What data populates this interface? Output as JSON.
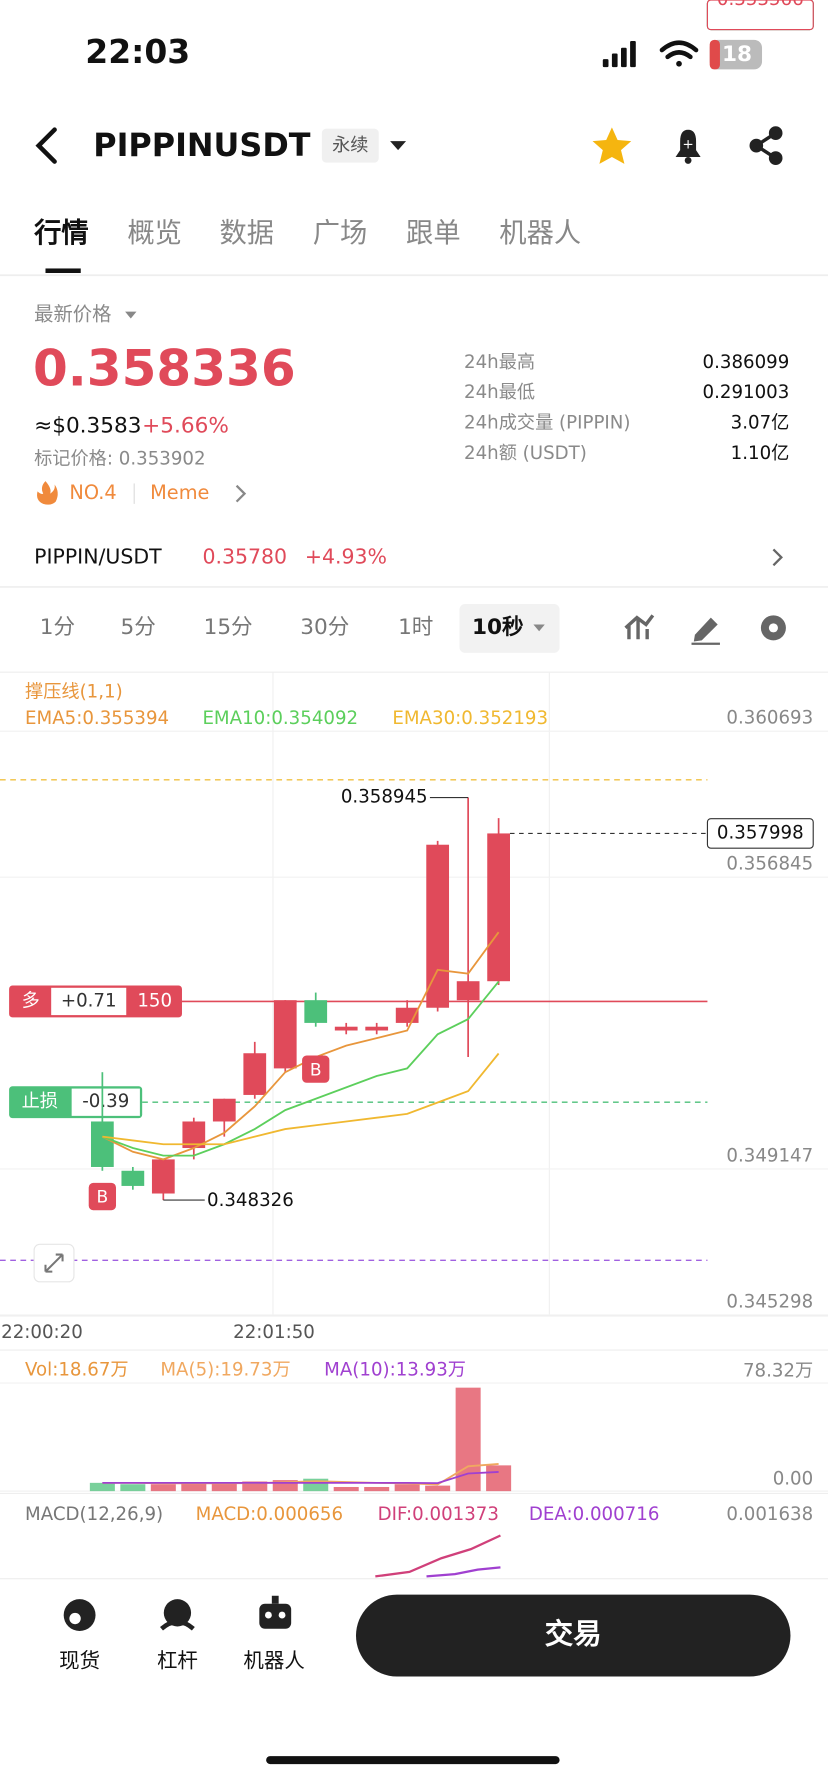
{
  "status_bar": {
    "time": "22:03",
    "battery": "18"
  },
  "header": {
    "symbol": "PIPPINUSDT",
    "contract_type": "永续"
  },
  "tabs": [
    "行情",
    "概览",
    "数据",
    "广场",
    "跟单",
    "机器人"
  ],
  "price_panel": {
    "latest_label": "最新价格",
    "price": "0.358336",
    "usd_price": "≈$0.3583",
    "change": "+5.66%",
    "mark_price": "标记价格: 0.353902",
    "rank": "NO.4",
    "tag": "Meme",
    "stats": [
      {
        "label": "24h最高",
        "value": "0.386099"
      },
      {
        "label": "24h最低",
        "value": "0.291003"
      },
      {
        "label": "24h成交量 (PIPPIN)",
        "value": "3.07亿"
      },
      {
        "label": "24h额 (USDT)",
        "value": "1.10亿"
      }
    ]
  },
  "spot_row": {
    "pair": "PIPPIN/USDT",
    "price": "0.35780",
    "change": "+4.93%"
  },
  "intervals": [
    "1分",
    "5分",
    "15分",
    "30分",
    "1时",
    "10秒"
  ],
  "chart": {
    "indicator_label": "撑压线(1,1)",
    "ylim": [
      0.34527,
      0.36222
    ],
    "yticks": [
      0.360693,
      0.356845,
      0.349147,
      0.345298
    ],
    "time_labels": [
      "22:00:20",
      "22:01:50"
    ],
    "up_color": "#e04a5a",
    "down_color": "#4cc07a",
    "candles": [
      {
        "o": 0.3504,
        "h": 0.3517,
        "l": 0.3491,
        "c": 0.3492
      },
      {
        "o": 0.3491,
        "h": 0.3492,
        "l": 0.3486,
        "c": 0.3487
      },
      {
        "o": 0.3485,
        "h": 0.3494,
        "l": 0.348326,
        "c": 0.3494
      },
      {
        "o": 0.3497,
        "h": 0.3505,
        "l": 0.3494,
        "c": 0.3504
      },
      {
        "o": 0.3504,
        "h": 0.351,
        "l": 0.35,
        "c": 0.351
      },
      {
        "o": 0.3511,
        "h": 0.3525,
        "l": 0.351,
        "c": 0.3522
      },
      {
        "o": 0.3518,
        "h": 0.3536,
        "l": 0.3517,
        "c": 0.3536
      },
      {
        "o": 0.3536,
        "h": 0.3538,
        "l": 0.3529,
        "c": 0.353
      },
      {
        "o": 0.3528,
        "h": 0.353,
        "l": 0.3527,
        "c": 0.3529
      },
      {
        "o": 0.3528,
        "h": 0.353,
        "l": 0.3527,
        "c": 0.3529
      },
      {
        "o": 0.353,
        "h": 0.3536,
        "l": 0.3529,
        "c": 0.3534
      },
      {
        "o": 0.3534,
        "h": 0.3578,
        "l": 0.3533,
        "c": 0.3577
      },
      {
        "o": 0.3536,
        "h": 0.358945,
        "l": 0.3521,
        "c": 0.3541
      },
      {
        "o": 0.3541,
        "h": 0.3584,
        "l": 0.354,
        "c": 0.357998
      }
    ],
    "ema": [
      {
        "name": "EMA5:0.355394",
        "color": "#e8963c",
        "values": [
          0.35,
          0.3496,
          0.3494,
          0.3497,
          0.3501,
          0.3508,
          0.3517,
          0.3521,
          0.3524,
          0.3526,
          0.3528,
          0.3544,
          0.3543,
          0.355394
        ]
      },
      {
        "name": "EMA10:0.354092",
        "color": "#5ccf5c",
        "values": [
          0.35,
          0.3497,
          0.3495,
          0.3495,
          0.3498,
          0.3502,
          0.3507,
          0.351,
          0.3513,
          0.3516,
          0.3518,
          0.3527,
          0.3531,
          0.354092
        ]
      },
      {
        "name": "EMA30:0.352193",
        "color": "#f0b830",
        "values": [
          0.35,
          0.3499,
          0.3498,
          0.3498,
          0.3498,
          0.35,
          0.3502,
          0.3503,
          0.3504,
          0.3505,
          0.3506,
          0.3509,
          0.3512,
          0.352193
        ]
      }
    ],
    "resistance_line": 0.359411,
    "last_price": 0.357998,
    "position": {
      "side": "多",
      "pnl": "+0.71",
      "qty": "150",
      "price": 0.353566
    },
    "stop_loss": {
      "label": "止损",
      "pnl": "-0.39",
      "price": 0.350908
    },
    "support_line": 0.346739,
    "high_label": 0.358945,
    "low_label": 0.348326,
    "trades": [
      "B",
      "B"
    ]
  },
  "volume": {
    "vol_label": "Vol:18.67万",
    "ylim": [
      0,
      78.32
    ],
    "yticks": [
      {
        "value": 78.32,
        "label": "78.32万"
      },
      {
        "value": 0,
        "label": "0.00"
      }
    ],
    "values": [
      6,
      5,
      5,
      6,
      6,
      7,
      8,
      9,
      3,
      3,
      5,
      4,
      75,
      18.67
    ],
    "ma": [
      {
        "name": "MA(5):19.73万",
        "color": "#f0a860",
        "values": [
          6,
          6,
          5.6,
          5.6,
          5.6,
          5.8,
          6.4,
          7.2,
          6.6,
          6,
          5.6,
          4.8,
          18,
          19.73
        ]
      },
      {
        "name": "MA(10):13.93万",
        "color": "#a040d0",
        "values": [
          6,
          6,
          6,
          6,
          6,
          6,
          6,
          6,
          6,
          6,
          6,
          5.8,
          12.8,
          13.93
        ]
      }
    ]
  },
  "macd": {
    "title": "MACD(12,26,9)",
    "macd": "MACD:0.000656",
    "dif": "DIF:0.001373",
    "dea": "DEA:0.000716",
    "axis_top": "0.001638"
  },
  "bottom_nav": {
    "items": [
      "现货",
      "杠杆",
      "机器人"
    ],
    "trade_button": "交易"
  }
}
